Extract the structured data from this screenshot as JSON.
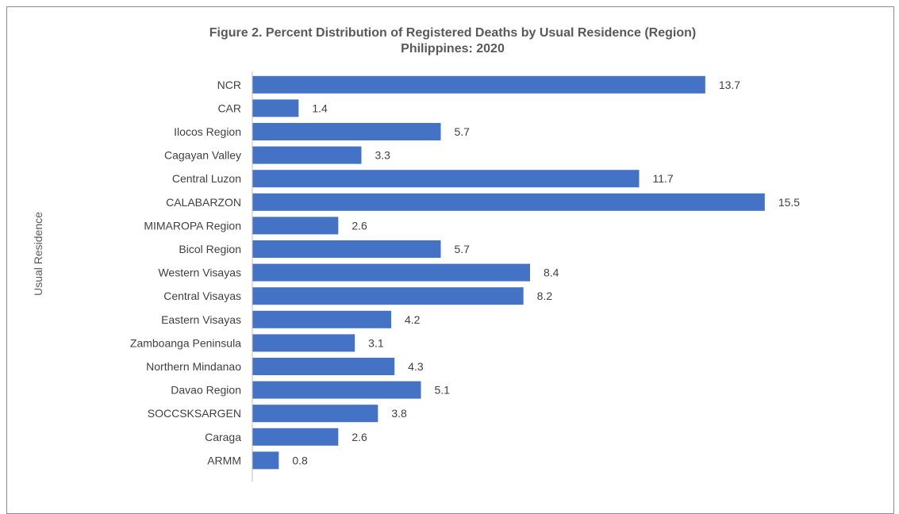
{
  "chart_data": {
    "type": "bar",
    "orientation": "horizontal",
    "title": "Figure 2.  Percent Distribution of Registered Deaths by Usual Residence (Region)",
    "subtitle": "Philippines: 2020",
    "ylabel": "Usual Residence",
    "xlabel": "",
    "categories": [
      "NCR",
      "CAR",
      "Ilocos Region",
      "Cagayan Valley",
      "Central Luzon",
      "CALABARZON",
      "MIMAROPA Region",
      "Bicol Region",
      "Western Visayas",
      "Central Visayas",
      "Eastern Visayas",
      "Zamboanga Peninsula",
      "Northern Mindanao",
      "Davao Region",
      "SOCCSKSARGEN",
      "Caraga",
      "ARMM"
    ],
    "values": [
      13.7,
      1.4,
      5.7,
      3.3,
      11.7,
      15.5,
      2.6,
      5.7,
      8.4,
      8.2,
      4.2,
      3.1,
      4.3,
      5.1,
      3.8,
      2.6,
      0.8
    ],
    "data_labels": [
      "13.7",
      "1.4",
      "5.7",
      "3.3",
      "11.7",
      "15.5",
      "2.6",
      "5.7",
      "8.4",
      "8.2",
      "4.2",
      "3.1",
      "4.3",
      "5.1",
      "3.8",
      "2.6",
      "0.8"
    ],
    "xlim": [
      0,
      16.8
    ],
    "grid": false,
    "legend": "none",
    "bar_color": "#4472c4"
  }
}
